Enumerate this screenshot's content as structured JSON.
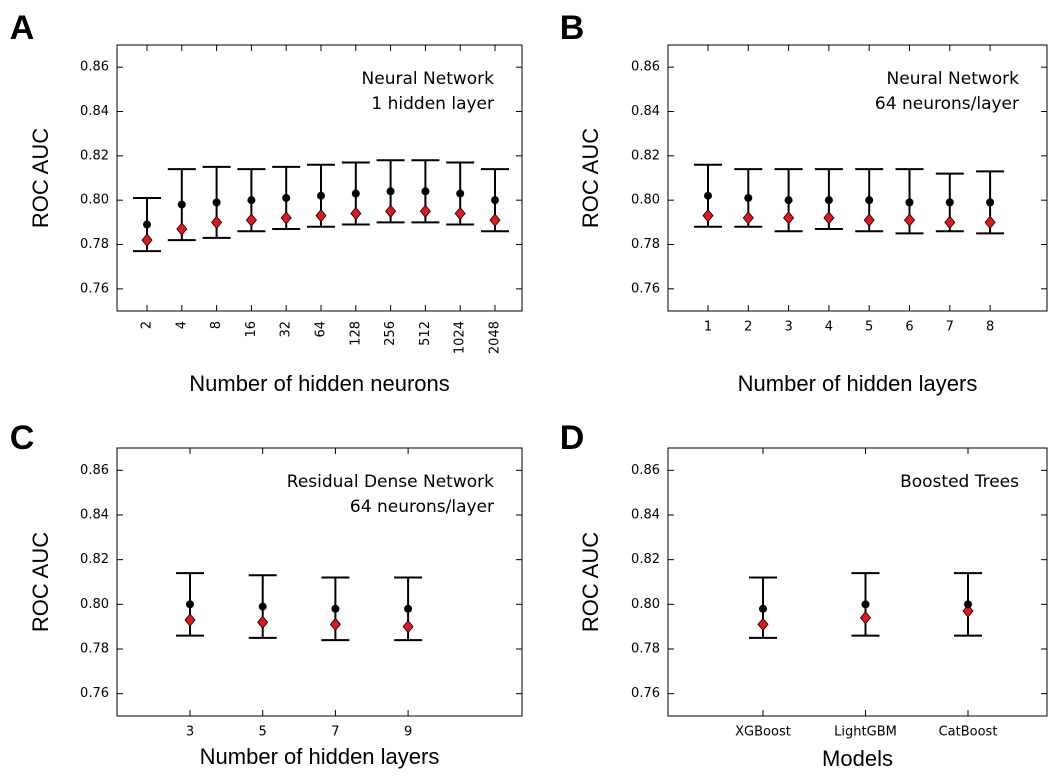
{
  "chart_data": [
    {
      "type": "errorbar",
      "label": "A",
      "annotation": [
        "Neural Network",
        "1 hidden layer"
      ],
      "x_label": "Number of hidden neurons",
      "y_label": "ROC AUC",
      "categories": [
        "2",
        "4",
        "8",
        "16",
        "32",
        "64",
        "128",
        "256",
        "512",
        "1024",
        "2048"
      ],
      "ylim": [
        0.75,
        0.87
      ],
      "yticks": [
        0.76,
        0.78,
        {
          "value": 0.8,
          "label": "0.80"
        },
        0.82,
        0.84,
        0.86
      ],
      "points": [
        {
          "color": "#000000",
          "marker": "circle",
          "values": [
            0.789,
            0.798,
            0.799,
            0.8,
            0.801,
            0.802,
            0.803,
            0.804,
            0.804,
            0.803,
            0.8
          ]
        },
        {
          "color": "#e8141b",
          "marker": "diamond",
          "values": [
            0.782,
            0.787,
            0.79,
            0.791,
            0.792,
            0.793,
            0.794,
            0.795,
            0.795,
            0.794,
            0.791
          ]
        }
      ],
      "lower": [
        0.777,
        0.782,
        0.783,
        0.786,
        0.787,
        0.788,
        0.789,
        0.79,
        0.79,
        0.789,
        0.786
      ],
      "upper": [
        0.801,
        0.814,
        0.815,
        0.814,
        0.815,
        0.816,
        0.817,
        0.818,
        0.818,
        0.817,
        0.814
      ]
    },
    {
      "type": "errorbar",
      "label": "B",
      "annotation": [
        "Neural Network",
        "64 neurons/layer"
      ],
      "x_label": "Number of hidden layers",
      "y_label": "ROC AUC",
      "categories": [
        "1",
        "2",
        "3",
        "4",
        "5",
        "6",
        "7",
        "8"
      ],
      "ylim": [
        0.75,
        0.87
      ],
      "yticks": [
        0.76,
        0.78,
        {
          "value": 0.8,
          "label": "0.80"
        },
        0.82,
        0.84,
        0.86
      ],
      "points": [
        {
          "color": "#000000",
          "marker": "circle",
          "values": [
            0.802,
            0.801,
            0.8,
            0.8,
            0.8,
            0.799,
            0.799,
            0.799
          ]
        },
        {
          "color": "#e8141b",
          "marker": "diamond",
          "values": [
            0.793,
            0.792,
            0.792,
            0.792,
            0.791,
            0.791,
            0.79,
            0.79
          ]
        }
      ],
      "lower": [
        0.788,
        0.788,
        0.786,
        0.787,
        0.786,
        0.785,
        0.786,
        0.785
      ],
      "upper": [
        0.816,
        0.814,
        0.814,
        0.814,
        0.814,
        0.814,
        0.812,
        0.813
      ]
    },
    {
      "type": "errorbar",
      "label": "C",
      "annotation": [
        "Residual Dense Network",
        "64 neurons/layer"
      ],
      "x_label": "Number of hidden layers",
      "y_label": "ROC AUC",
      "categories": [
        "3",
        "5",
        "7",
        "9"
      ],
      "ylim": [
        0.75,
        0.87
      ],
      "yticks": [
        0.76,
        0.78,
        {
          "value": 0.8,
          "label": "0.80"
        },
        0.82,
        0.84,
        0.86
      ],
      "points": [
        {
          "color": "#000000",
          "marker": "circle",
          "values": [
            0.8,
            0.799,
            0.798,
            0.798
          ]
        },
        {
          "color": "#e8141b",
          "marker": "diamond",
          "values": [
            0.793,
            0.792,
            0.791,
            0.79
          ]
        }
      ],
      "lower": [
        0.786,
        0.785,
        0.784,
        0.784
      ],
      "upper": [
        0.814,
        0.813,
        0.812,
        0.812
      ]
    },
    {
      "type": "errorbar",
      "label": "D",
      "annotation": [
        "Boosted Trees"
      ],
      "x_label": "Models",
      "y_label": "ROC AUC",
      "categories": [
        "XGBoost",
        "LightGBM",
        "CatBoost"
      ],
      "ylim": [
        0.75,
        0.87
      ],
      "yticks": [
        0.76,
        0.78,
        {
          "value": 0.8,
          "label": "0.80"
        },
        0.82,
        0.84,
        0.86
      ],
      "points": [
        {
          "color": "#000000",
          "marker": "circle",
          "values": [
            0.798,
            0.8,
            0.8
          ]
        },
        {
          "color": "#e8141b",
          "marker": "diamond",
          "values": [
            0.791,
            0.794,
            0.797
          ]
        }
      ],
      "lower": [
        0.785,
        0.786,
        0.786
      ],
      "upper": [
        0.812,
        0.814,
        0.814
      ]
    }
  ]
}
